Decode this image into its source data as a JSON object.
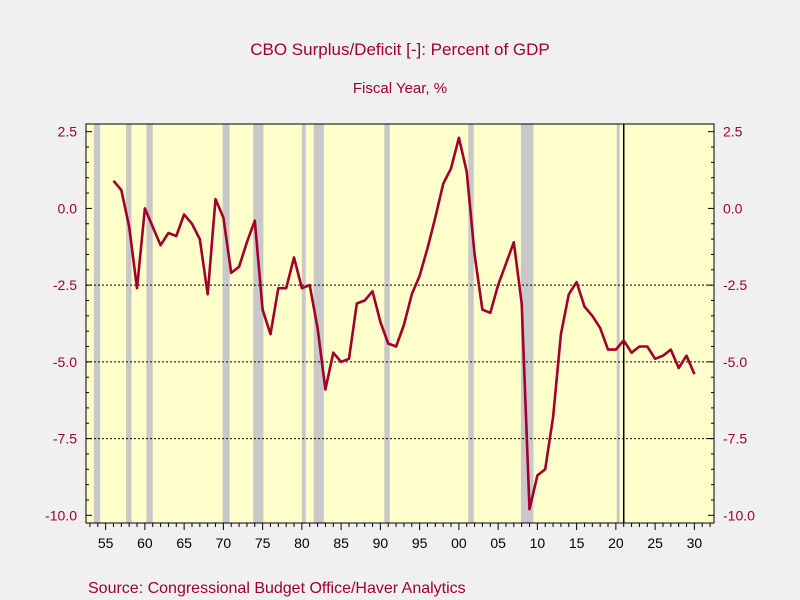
{
  "chart_data": {
    "type": "line",
    "title": "CBO Surplus/Deficit [-]: Percent of GDP",
    "subtitle": "Fiscal Year, %",
    "source": "Source:  Congressional Budget Office/Haver Analytics",
    "xlim": [
      1952.5,
      2032.5
    ],
    "ylim": [
      -10.25,
      2.75
    ],
    "yticks": [
      2.5,
      0.0,
      -2.5,
      -5.0,
      -7.5,
      -10.0
    ],
    "ytick_labels": [
      "2.5",
      "0.0",
      "-2.5",
      "-5.0",
      "-7.5",
      "-10.0"
    ],
    "xticks": [
      1955,
      1960,
      1965,
      1970,
      1975,
      1980,
      1985,
      1990,
      1995,
      2000,
      2005,
      2010,
      2015,
      2020,
      2025,
      2030
    ],
    "xtick_labels": [
      "55",
      "60",
      "65",
      "70",
      "75",
      "80",
      "85",
      "90",
      "95",
      "00",
      "05",
      "10",
      "15",
      "20",
      "25",
      "30"
    ],
    "gridlines_y": [
      -2.5,
      -5.0,
      -7.5
    ],
    "forecast_start": 2021,
    "recessions": [
      [
        1953.5,
        1954.3
      ],
      [
        1957.6,
        1958.3
      ],
      [
        1960.2,
        1961.0
      ],
      [
        1969.9,
        1970.8
      ],
      [
        1973.8,
        1975.1
      ],
      [
        1980.0,
        1980.5
      ],
      [
        1981.5,
        1982.8
      ],
      [
        1990.5,
        1991.2
      ],
      [
        2001.2,
        2001.9
      ],
      [
        2007.9,
        2009.5
      ],
      [
        2020.1,
        2020.4
      ]
    ],
    "series": [
      {
        "color": "#a0002a",
        "x": [
          1956,
          1957,
          1958,
          1959,
          1960,
          1961,
          1962,
          1963,
          1964,
          1965,
          1966,
          1967,
          1968,
          1969,
          1970,
          1971,
          1972,
          1973,
          1974,
          1975,
          1976,
          1977,
          1978,
          1979,
          1980,
          1981,
          1982,
          1983,
          1984,
          1985,
          1986,
          1987,
          1988,
          1989,
          1990,
          1991,
          1992,
          1993,
          1994,
          1995,
          1996,
          1997,
          1998,
          1999,
          2000,
          2001,
          2002,
          2003,
          2004,
          2005,
          2006,
          2007,
          2008,
          2009,
          2010,
          2011,
          2012,
          2013,
          2014,
          2015,
          2016,
          2017,
          2018,
          2019,
          2020,
          2021,
          2022,
          2023,
          2024,
          2025,
          2026,
          2027,
          2028,
          2029,
          2030
        ],
        "values": [
          0.9,
          0.6,
          -0.6,
          -2.6,
          0.0,
          -0.6,
          -1.2,
          -0.8,
          -0.9,
          -0.2,
          -0.5,
          -1.0,
          -2.8,
          0.3,
          -0.3,
          -2.1,
          -1.9,
          -1.1,
          -0.4,
          -3.3,
          -4.1,
          -2.6,
          -2.6,
          -1.6,
          -2.6,
          -2.5,
          -3.9,
          -5.9,
          -4.7,
          -5.0,
          -4.9,
          -3.1,
          -3.0,
          -2.7,
          -3.7,
          -4.4,
          -4.5,
          -3.8,
          -2.8,
          -2.2,
          -1.3,
          -0.3,
          0.8,
          1.3,
          2.3,
          1.2,
          -1.5,
          -3.3,
          -3.4,
          -2.5,
          -1.8,
          -1.1,
          -3.1,
          -9.8,
          -8.7,
          -8.5,
          -6.8,
          -4.1,
          -2.8,
          -2.4,
          -3.2,
          -3.5,
          -3.9,
          -4.6,
          -4.6,
          -4.3,
          -4.7,
          -4.5,
          -4.5,
          -4.9,
          -4.8,
          -4.6,
          -5.2,
          -4.8,
          -5.4
        ]
      }
    ]
  },
  "colors": {
    "background": "#f0f0f0",
    "plot_background": "#ffffcc",
    "recession_shade": "#c8c8c8",
    "text": "#a0002a",
    "line": "#a0002a"
  }
}
